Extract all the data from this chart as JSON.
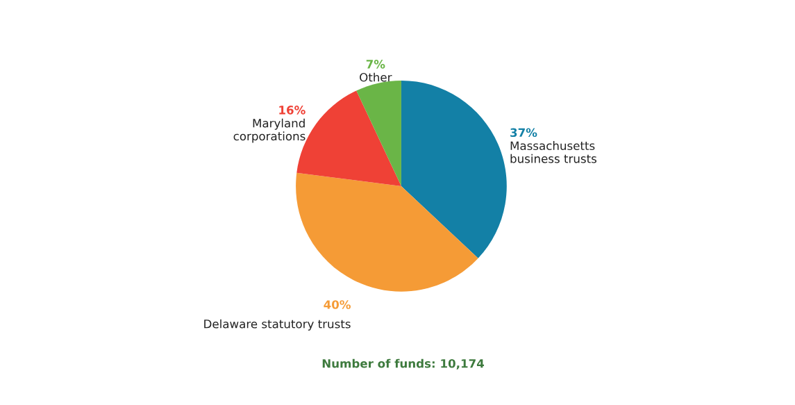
{
  "chart_data": {
    "type": "pie",
    "categories": [
      "Massachusetts\nbusiness trusts",
      "Delaware statutory trusts",
      "Maryland\ncorporations",
      "Other"
    ],
    "values": [
      37,
      40,
      16,
      7
    ],
    "value_labels": [
      "37%",
      "40%",
      "16%",
      "7%"
    ],
    "colors": [
      "#1380a6",
      "#f59b36",
      "#ef4136",
      "#6ab547"
    ],
    "legend": false,
    "annotations": [
      "Number of funds: 10,174"
    ]
  }
}
